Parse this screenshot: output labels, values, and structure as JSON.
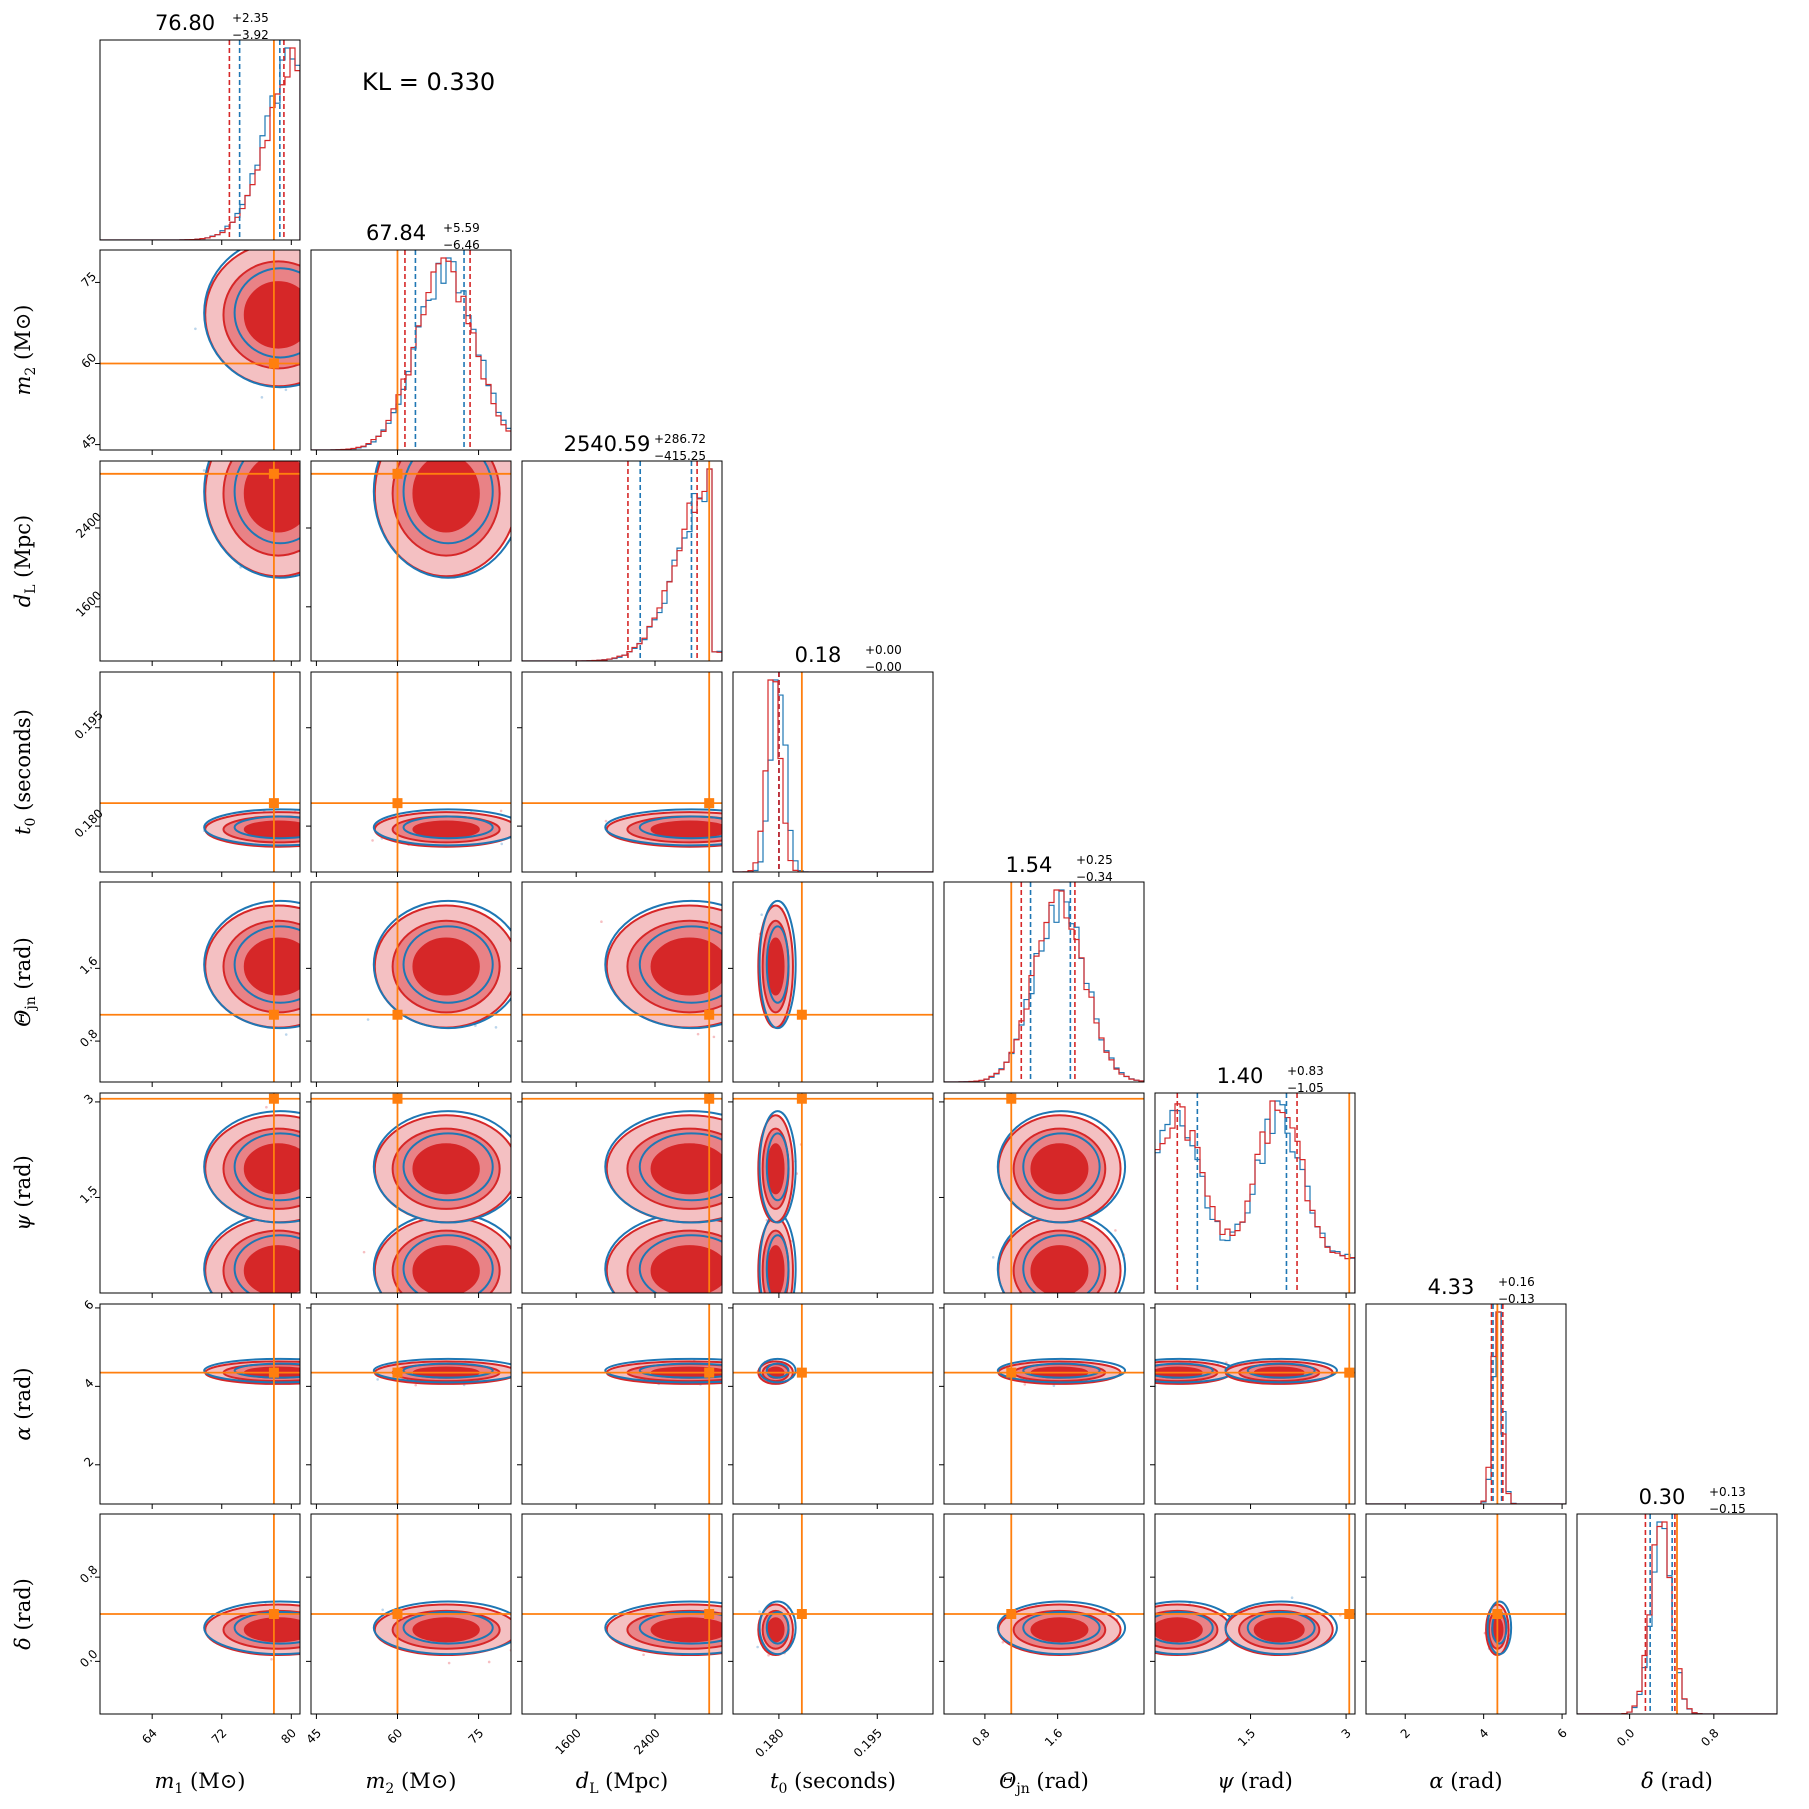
{
  "annotation": "KL = 0.330",
  "colors": {
    "red": "#d62728",
    "blue": "#1f77b4",
    "orange": "#ff7f0e",
    "pink": "#f2a4a8"
  },
  "chart_data": {
    "type": "scatter",
    "subtype": "corner-plot",
    "parameters": [
      {
        "key": "m1",
        "label_main": "m",
        "label_sub": "1",
        "label_unit": "(M⊙)",
        "range": [
          58,
          81
        ],
        "ticks": [
          64,
          72,
          80
        ],
        "truth": 78,
        "median": 76.8,
        "plus": "+2.35",
        "minus": "−3.92",
        "value_label": "76.80"
      },
      {
        "key": "m2",
        "label_main": "m",
        "label_sub": "2",
        "label_unit": "(M⊙)",
        "range": [
          44,
          81
        ],
        "ticks": [
          45,
          60,
          75
        ],
        "truth": 60,
        "median": 67.84,
        "plus": "+5.59",
        "minus": "−6.46",
        "value_label": "67.84"
      },
      {
        "key": "dL",
        "label_main": "d",
        "label_sub": "L",
        "label_unit": "(Mpc)",
        "range": [
          1050,
          3080
        ],
        "ticks": [
          1600,
          2400
        ],
        "truth": 2950,
        "median": 2540.59,
        "plus": "+286.72",
        "minus": "−415.25",
        "value_label": "2540.59"
      },
      {
        "key": "t0",
        "label_main": "t",
        "label_sub": "0",
        "label_unit": "(seconds)",
        "range": [
          0.173,
          0.2035
        ],
        "ticks": [
          0.18,
          0.195
        ],
        "tick_labels": [
          "0.180",
          "0.195"
        ],
        "truth": 0.1835,
        "median": 0.18,
        "plus": "+0.00",
        "minus": "−0.00",
        "value_label": "0.18"
      },
      {
        "key": "theta",
        "label_main": "Θ",
        "label_sub": "jn",
        "label_unit": "(rad)",
        "range": [
          0.35,
          2.55
        ],
        "ticks": [
          0.8,
          1.6
        ],
        "truth": 1.09,
        "median": 1.54,
        "plus": "+0.25",
        "minus": "−0.34",
        "value_label": "1.54"
      },
      {
        "key": "psi",
        "label_main": "ψ",
        "label_sub": "",
        "label_unit": "(rad)",
        "range": [
          0.0,
          3.14
        ],
        "ticks": [
          1.5,
          3.0
        ],
        "truth": 3.05,
        "median": 1.4,
        "plus": "+0.83",
        "minus": "−1.05",
        "value_label": "1.40"
      },
      {
        "key": "alpha",
        "label_main": "α",
        "label_sub": "",
        "label_unit": "(rad)",
        "range": [
          1.0,
          6.1
        ],
        "ticks": [
          2,
          4,
          6
        ],
        "truth": 4.35,
        "median": 4.33,
        "plus": "+0.16",
        "minus": "−0.13",
        "value_label": "4.33"
      },
      {
        "key": "delta",
        "label_main": "δ",
        "label_sub": "",
        "label_unit": "(rad)",
        "range": [
          -0.5,
          1.4
        ],
        "ticks": [
          0.0,
          0.8
        ],
        "tick_labels": [
          "0.0",
          "0.8"
        ],
        "truth": 0.45,
        "median": 0.3,
        "plus": "+0.13",
        "minus": "−0.15",
        "value_label": "0.30"
      }
    ],
    "grid": false,
    "legend": "none"
  }
}
